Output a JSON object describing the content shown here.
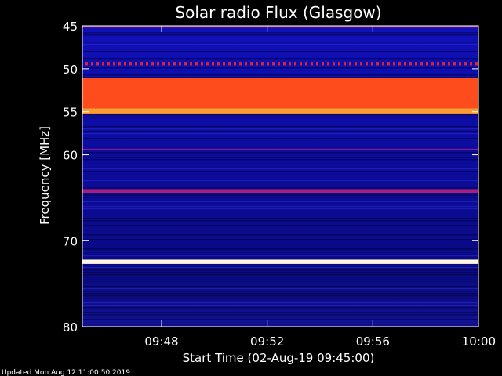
{
  "chart_data": {
    "type": "heatmap",
    "title": "Solar radio Flux (Glasgow)",
    "xlabel": "Start Time (02-Aug-19 09:45:00)",
    "ylabel": "Frequency [MHz]",
    "x_range": [
      "09:45:00",
      "10:00:00"
    ],
    "y_range": [
      45,
      80
    ],
    "y_inverted": true,
    "x_ticks": [
      "09:48",
      "09:52",
      "09:56",
      "10:00"
    ],
    "y_ticks": [
      45,
      50,
      55,
      60,
      70,
      80
    ],
    "colormap": [
      "#000000",
      "#00007a",
      "#1c1ce6",
      "#9c1c8c",
      "#ff2a14",
      "#ffd23c",
      "#ffffff"
    ],
    "bands": [
      {
        "from": 45.0,
        "to": 45.2,
        "level": 0.55
      },
      {
        "from": 49.2,
        "to": 49.6,
        "level": 0.6,
        "dashed": true
      },
      {
        "from": 51.1,
        "to": 54.6,
        "level": 0.7
      },
      {
        "from": 54.6,
        "to": 55.2,
        "level": 0.78
      },
      {
        "from": 59.3,
        "to": 59.5,
        "level": 0.48
      },
      {
        "from": 64.0,
        "to": 64.5,
        "level": 0.52
      },
      {
        "from": 72.2,
        "to": 72.7,
        "level": 0.97
      }
    ],
    "footer": "Updated Mon Aug 12 11:00:50 2019"
  }
}
